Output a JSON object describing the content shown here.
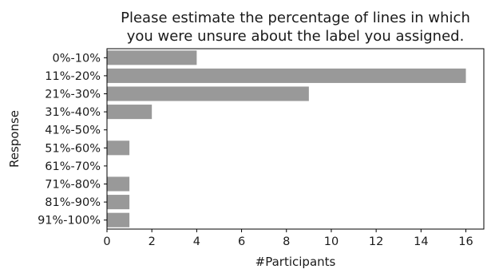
{
  "chart_data": {
    "type": "bar",
    "orientation": "horizontal",
    "title_lines": [
      "Please estimate the percentage of lines in which",
      "you were unsure about the label you assigned."
    ],
    "xlabel": "#Participants",
    "ylabel": "Response",
    "categories": [
      "0%-10%",
      "11%-20%",
      "21%-30%",
      "31%-40%",
      "41%-50%",
      "51%-60%",
      "61%-70%",
      "71%-80%",
      "81%-90%",
      "91%-100%"
    ],
    "values": [
      4,
      16,
      9,
      2,
      0,
      1,
      0,
      1,
      1,
      1
    ],
    "xlim": [
      0,
      16.8
    ],
    "xticks": [
      0,
      2,
      4,
      6,
      8,
      10,
      12,
      14,
      16
    ],
    "bar_color": "#999999",
    "grid": false
  }
}
